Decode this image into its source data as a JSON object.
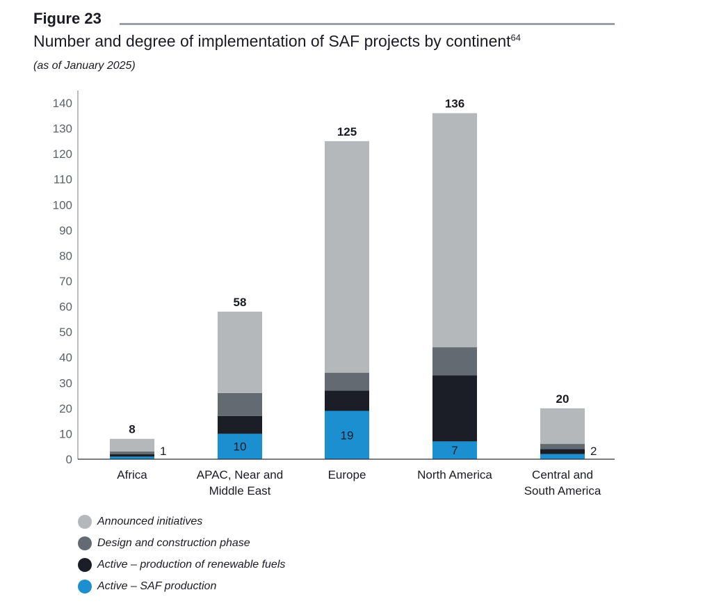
{
  "figure_label": "Figure 23",
  "title": "Number and degree of implementation of SAF projects by continent",
  "title_superscript": "64",
  "subtitle": "(as of January 2025)",
  "colors": {
    "announced": "#b4b8bb",
    "design": "#646a71",
    "active_renewable": "#1b1e27",
    "active_saf": "#1c8fd1"
  },
  "chart_data": {
    "type": "bar",
    "stacked": true,
    "ylim": [
      0,
      140
    ],
    "yticks": [
      "0",
      "10",
      "20",
      "30",
      "40",
      "50",
      "60",
      "70",
      "80",
      "90",
      "100",
      "110",
      "120",
      "130",
      "140"
    ],
    "categories": [
      {
        "line1": "Africa",
        "line2": ""
      },
      {
        "line1": "APAC, Near and",
        "line2": "Middle East"
      },
      {
        "line1": "Europe",
        "line2": ""
      },
      {
        "line1": "North America",
        "line2": ""
      },
      {
        "line1": "Central and",
        "line2": "South America"
      }
    ],
    "series": [
      {
        "name": "Active – SAF production",
        "key": "active_saf",
        "values": [
          1,
          10,
          19,
          7,
          2
        ]
      },
      {
        "name": "Active – production of renewable fuels",
        "key": "active_renewable",
        "values": [
          1,
          7,
          8,
          26,
          2
        ]
      },
      {
        "name": "Design and construction phase",
        "key": "design",
        "values": [
          1,
          9,
          7,
          11,
          2
        ]
      },
      {
        "name": "Announced initiatives",
        "key": "announced",
        "values": [
          5,
          32,
          91,
          92,
          14
        ]
      }
    ],
    "totals": [
      "8",
      "58",
      "125",
      "136",
      "20"
    ],
    "saf_labels": [
      "1",
      "10",
      "19",
      "7",
      "2"
    ],
    "saf_label_outside": [
      true,
      false,
      false,
      false,
      true
    ],
    "legend_order": [
      "announced",
      "design",
      "active_renewable",
      "active_saf"
    ],
    "legend": [
      {
        "key": "announced",
        "label": "Announced initiatives"
      },
      {
        "key": "design",
        "label": "Design and construction phase"
      },
      {
        "key": "active_renewable",
        "label": "Active – production of renewable fuels"
      },
      {
        "key": "active_saf",
        "label": "Active – SAF production"
      }
    ]
  }
}
